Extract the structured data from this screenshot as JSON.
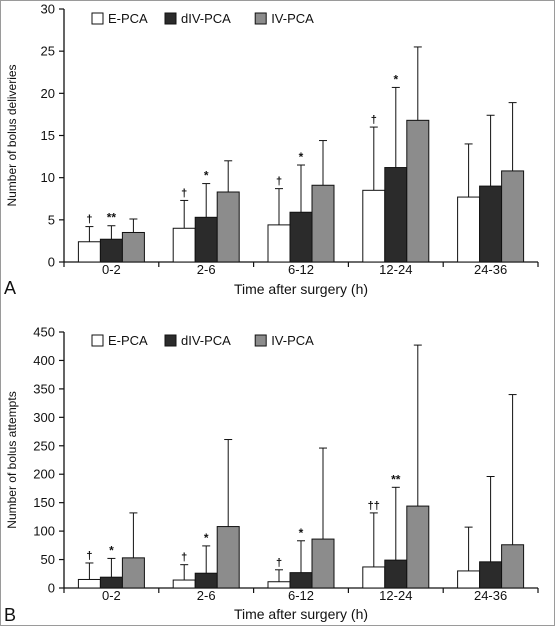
{
  "colors": {
    "E-PCA": "#ffffff",
    "dIV-PCA": "#2b2b2b",
    "IV-PCA": "#8c8c8c",
    "axis": "#111111"
  },
  "legend_marker": "square",
  "chart_data": [
    {
      "type": "bar",
      "panel_label": "A",
      "xlabel": "Time after surgery (h)",
      "ylabel": "Number of bolus deliveries",
      "ylim": [
        0,
        30
      ],
      "yticks": [
        0,
        5,
        10,
        15,
        20,
        25,
        30
      ],
      "legend_position": "top-left",
      "categories": [
        "0-2",
        "2-6",
        "6-12",
        "12-24",
        "24-36"
      ],
      "series": [
        {
          "name": "E-PCA",
          "values": [
            2.4,
            4.0,
            4.4,
            8.5,
            7.7
          ],
          "error": [
            1.8,
            3.3,
            4.3,
            7.5,
            6.3
          ]
        },
        {
          "name": "dIV-PCA",
          "values": [
            2.7,
            5.3,
            5.9,
            11.2,
            9.0
          ],
          "error": [
            1.6,
            4.0,
            5.6,
            9.5,
            8.4
          ]
        },
        {
          "name": "IV-PCA",
          "values": [
            3.5,
            8.3,
            9.1,
            16.8,
            10.8
          ],
          "error": [
            1.6,
            3.7,
            5.3,
            8.7,
            8.1
          ]
        }
      ],
      "annotations": [
        {
          "series": "E-PCA",
          "category": "0-2",
          "text": "†"
        },
        {
          "series": "dIV-PCA",
          "category": "0-2",
          "text": "**"
        },
        {
          "series": "E-PCA",
          "category": "2-6",
          "text": "†"
        },
        {
          "series": "dIV-PCA",
          "category": "2-6",
          "text": "*"
        },
        {
          "series": "E-PCA",
          "category": "6-12",
          "text": "†"
        },
        {
          "series": "dIV-PCA",
          "category": "6-12",
          "text": "*"
        },
        {
          "series": "E-PCA",
          "category": "12-24",
          "text": "†"
        },
        {
          "series": "dIV-PCA",
          "category": "12-24",
          "text": "*"
        }
      ]
    },
    {
      "type": "bar",
      "panel_label": "B",
      "xlabel": "Time after surgery (h)",
      "ylabel": "Number of bolus attempts",
      "ylim": [
        0,
        450
      ],
      "yticks": [
        0,
        50,
        100,
        150,
        200,
        250,
        300,
        350,
        400,
        450
      ],
      "legend_position": "top-left",
      "categories": [
        "0-2",
        "2-6",
        "6-12",
        "12-24",
        "24-36"
      ],
      "series": [
        {
          "name": "E-PCA",
          "values": [
            15,
            14,
            11,
            37,
            30
          ],
          "error": [
            29,
            27,
            21,
            95,
            77
          ]
        },
        {
          "name": "dIV-PCA",
          "values": [
            19,
            26,
            27,
            49,
            46
          ],
          "error": [
            33,
            48,
            56,
            128,
            150
          ]
        },
        {
          "name": "IV-PCA",
          "values": [
            53,
            108,
            86,
            144,
            76
          ],
          "error": [
            79,
            153,
            160,
            283,
            264
          ]
        }
      ],
      "annotations": [
        {
          "series": "E-PCA",
          "category": "0-2",
          "text": "†"
        },
        {
          "series": "dIV-PCA",
          "category": "0-2",
          "text": "*"
        },
        {
          "series": "E-PCA",
          "category": "2-6",
          "text": "†"
        },
        {
          "series": "dIV-PCA",
          "category": "2-6",
          "text": "*"
        },
        {
          "series": "E-PCA",
          "category": "6-12",
          "text": "†"
        },
        {
          "series": "dIV-PCA",
          "category": "6-12",
          "text": "*"
        },
        {
          "series": "E-PCA",
          "category": "12-24",
          "text": "††"
        },
        {
          "series": "dIV-PCA",
          "category": "12-24",
          "text": "**"
        }
      ]
    }
  ]
}
